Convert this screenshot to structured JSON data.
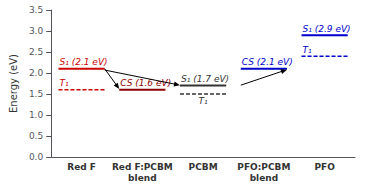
{
  "chart_data": {
    "type": "energy_levels",
    "categories": [
      "Red F",
      "Red F:PCBM\nblend",
      "PCBM",
      "PFO:PCBM\nblend",
      "PFO"
    ],
    "ylabel": "Energy (eV)",
    "ylim": [
      0,
      3.5
    ],
    "yticks": [
      {
        "value": 0,
        "label": "0.0"
      },
      0.5,
      {
        "value": 1.0,
        "label": "1.0"
      },
      1.5,
      {
        "value": 2.0,
        "label": "2.0"
      },
      2.5,
      {
        "value": 3.0,
        "label": "3.0"
      },
      3.5
    ],
    "grid": false,
    "levels": [
      {
        "category": "Red F",
        "value": 2.1,
        "label": "S₁ (2.1 eV)",
        "color": "#cc0000",
        "line_style": "solid"
      },
      {
        "category": "Red F",
        "value": 1.6,
        "label": "T₁",
        "color": "#cc0000",
        "line_style": "dashed"
      },
      {
        "category": "Red F:PCBM\nblend",
        "value": 1.6,
        "label": "CS (1.6 eV)",
        "color": "#8b0000",
        "line_style": "solid"
      },
      {
        "category": "PCBM",
        "value": 1.7,
        "label": "S₁ (1.7 eV)",
        "color": "#333333",
        "line_style": "solid"
      },
      {
        "category": "PCBM",
        "value": 1.5,
        "label": "T₁",
        "color": "#333333",
        "line_style": "dashed"
      },
      {
        "category": "PFO:PCBM\nblend",
        "value": 2.1,
        "label": "CS (2.1 eV)",
        "color": "#0000cc",
        "line_style": "solid"
      },
      {
        "category": "PFO",
        "value": 2.9,
        "label": "S₁ (2.9 eV)",
        "color": "#0000cc",
        "line_style": "solid"
      },
      {
        "category": "PFO",
        "value": 2.4,
        "label": "T₁",
        "color": "#0000cc",
        "line_style": "dashed"
      }
    ],
    "arrows": [
      {
        "x1": 0.38,
        "y1": 2.1,
        "x2": 0.62,
        "y2": 1.62
      },
      {
        "x1": 0.38,
        "y1": 2.07,
        "x2": 1.62,
        "y2": 1.71
      },
      {
        "x1": 2.62,
        "y1": 1.71,
        "x2": 3.38,
        "y2": 2.08
      }
    ]
  }
}
